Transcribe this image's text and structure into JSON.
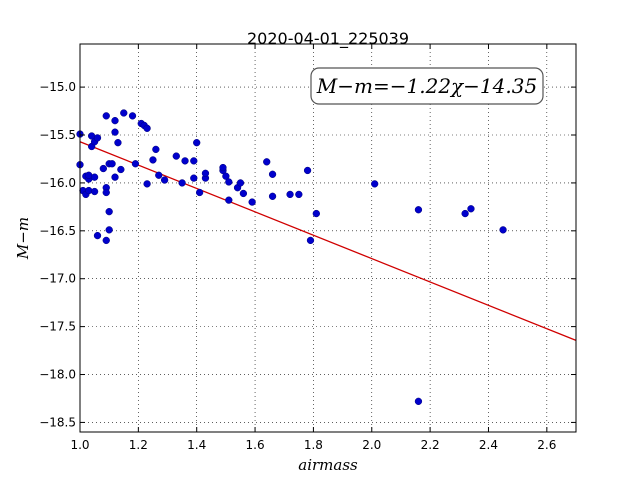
{
  "chart_data": {
    "type": "scatter",
    "title": "2020-04-01_225039",
    "xlabel": "airmass",
    "ylabel": "M−m",
    "annotation": "M−m=−1.22χ−14.35",
    "xlim": [
      1.0,
      2.7
    ],
    "ylim": [
      -18.6,
      -14.55
    ],
    "grid": true,
    "x_ticks": [
      1.0,
      1.2,
      1.4,
      1.6,
      1.8,
      2.0,
      2.2,
      2.4,
      2.6
    ],
    "x_tick_labels": [
      "1.0",
      "1.2",
      "1.4",
      "1.6",
      "1.8",
      "2.0",
      "2.2",
      "2.4",
      "2.6"
    ],
    "y_ticks": [
      -15.0,
      -15.5,
      -16.0,
      -16.5,
      -17.0,
      -17.5,
      -18.0,
      -18.5
    ],
    "y_tick_labels": [
      "−15.0",
      "−15.5",
      "−16.0",
      "−16.5",
      "−17.0",
      "−17.5",
      "−18.0",
      "−18.5"
    ],
    "fit_line": {
      "slope": -1.22,
      "intercept": -14.35,
      "color": "#d00000"
    },
    "point_color": "#0000cc",
    "points": [
      [
        1.0,
        -15.49
      ],
      [
        1.0,
        -15.81
      ],
      [
        1.01,
        -16.08
      ],
      [
        1.02,
        -16.12
      ],
      [
        1.02,
        -15.93
      ],
      [
        1.03,
        -15.96
      ],
      [
        1.03,
        -16.08
      ],
      [
        1.03,
        -15.92
      ],
      [
        1.04,
        -15.62
      ],
      [
        1.04,
        -15.51
      ],
      [
        1.05,
        -16.09
      ],
      [
        1.05,
        -15.94
      ],
      [
        1.05,
        -15.57
      ],
      [
        1.06,
        -16.55
      ],
      [
        1.06,
        -15.53
      ],
      [
        1.08,
        -15.85
      ],
      [
        1.09,
        -15.3
      ],
      [
        1.09,
        -16.05
      ],
      [
        1.09,
        -16.1
      ],
      [
        1.09,
        -16.6
      ],
      [
        1.1,
        -15.8
      ],
      [
        1.1,
        -16.3
      ],
      [
        1.1,
        -16.49
      ],
      [
        1.11,
        -15.8
      ],
      [
        1.12,
        -15.47
      ],
      [
        1.12,
        -15.94
      ],
      [
        1.12,
        -15.35
      ],
      [
        1.13,
        -15.58
      ],
      [
        1.14,
        -15.86
      ],
      [
        1.15,
        -15.27
      ],
      [
        1.18,
        -15.3
      ],
      [
        1.19,
        -15.8
      ],
      [
        1.21,
        -15.38
      ],
      [
        1.22,
        -15.4
      ],
      [
        1.23,
        -15.43
      ],
      [
        1.23,
        -16.01
      ],
      [
        1.25,
        -15.76
      ],
      [
        1.26,
        -15.65
      ],
      [
        1.27,
        -15.92
      ],
      [
        1.29,
        -15.97
      ],
      [
        1.33,
        -15.72
      ],
      [
        1.35,
        -16.0
      ],
      [
        1.36,
        -15.77
      ],
      [
        1.39,
        -15.95
      ],
      [
        1.39,
        -15.77
      ],
      [
        1.4,
        -15.58
      ],
      [
        1.41,
        -16.1
      ],
      [
        1.43,
        -15.95
      ],
      [
        1.43,
        -15.9
      ],
      [
        1.49,
        -15.87
      ],
      [
        1.49,
        -15.84
      ],
      [
        1.5,
        -15.93
      ],
      [
        1.51,
        -15.99
      ],
      [
        1.51,
        -16.18
      ],
      [
        1.54,
        -16.05
      ],
      [
        1.55,
        -16.0
      ],
      [
        1.56,
        -16.11
      ],
      [
        1.59,
        -16.2
      ],
      [
        1.64,
        -15.78
      ],
      [
        1.66,
        -16.14
      ],
      [
        1.66,
        -15.91
      ],
      [
        1.72,
        -16.12
      ],
      [
        1.75,
        -16.12
      ],
      [
        1.78,
        -15.87
      ],
      [
        1.79,
        -16.6
      ],
      [
        1.81,
        -16.32
      ],
      [
        2.01,
        -16.01
      ],
      [
        2.16,
        -16.28
      ],
      [
        2.16,
        -18.28
      ],
      [
        2.32,
        -16.32
      ],
      [
        2.34,
        -16.27
      ],
      [
        2.45,
        -16.49
      ]
    ]
  }
}
